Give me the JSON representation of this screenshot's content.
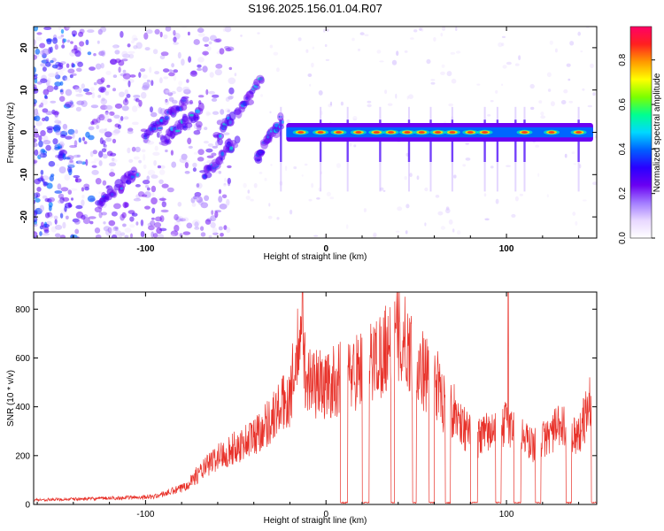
{
  "title": "S196.2025.156.01.04.R07",
  "colors": {
    "snr_line": "#e8322a",
    "colormap": [
      "#ffffff",
      "#e8d8ff",
      "#a27bff",
      "#6a00f2",
      "#2a00ff",
      "#0060ff",
      "#00d8ff",
      "#00ff90",
      "#7cff00",
      "#ffff00",
      "#ff9a00",
      "#ff2020",
      "#ff0066"
    ]
  },
  "chart_data": [
    {
      "type": "heatmap",
      "xlabel": "Height of straight line (km)",
      "ylabel": "Frequency (Hz)",
      "xlim": [
        -162,
        150
      ],
      "ylim": [
        -25,
        25
      ],
      "x_ticks": [
        -100,
        0,
        100
      ],
      "y_ticks": [
        -20,
        -10,
        0,
        10,
        20
      ],
      "colorbar": {
        "label": "Normalized spectral amplitude",
        "range": [
          0,
          0.95
        ],
        "ticks": [
          0,
          0.2,
          0.4,
          0.6,
          0.8
        ]
      },
      "ridges": [
        {
          "from": [
            -127,
            -18
          ],
          "to": [
            -105,
            -9
          ],
          "amp": 0.45
        },
        {
          "from": [
            -100,
            -1
          ],
          "to": [
            -78,
            7
          ],
          "amp": 0.45
        },
        {
          "from": [
            -90,
            -2
          ],
          "to": [
            -70,
            5
          ],
          "amp": 0.5
        },
        {
          "from": [
            -68,
            -10
          ],
          "to": [
            -50,
            -2
          ],
          "amp": 0.5
        },
        {
          "from": [
            -58,
            0
          ],
          "to": [
            -36,
            12
          ],
          "amp": 0.5
        },
        {
          "from": [
            -38,
            -6
          ],
          "to": [
            -25,
            3
          ],
          "amp": 0.5
        }
      ],
      "band": {
        "x_start": -22,
        "x_end": 148,
        "frequency": 0,
        "peaks_x": [
          -14,
          -3,
          7,
          18,
          28,
          36,
          45,
          53,
          62,
          70,
          80,
          88,
          110,
          125,
          140
        ],
        "spikes_x": [
          -25,
          -3,
          12,
          30,
          46,
          58,
          70,
          88,
          95,
          105,
          110,
          140
        ]
      }
    },
    {
      "type": "line",
      "xlabel": "Height of straight line (km)",
      "ylabel": "SNR (10 * v/v)",
      "xlim": [
        -162,
        150
      ],
      "ylim": [
        0,
        870
      ],
      "x_ticks": [
        -100,
        0,
        100
      ],
      "y_ticks": [
        0,
        200,
        400,
        600,
        800
      ],
      "envelope_x": [
        -162,
        -130,
        -110,
        -95,
        -80,
        -70,
        -60,
        -50,
        -40,
        -30,
        -20,
        -15,
        -10,
        0,
        10,
        20,
        30,
        35,
        40,
        45,
        50,
        55,
        60,
        65,
        70,
        75,
        80,
        85,
        90,
        95,
        100,
        105,
        110,
        115,
        120,
        125,
        130,
        135,
        140,
        145,
        150
      ],
      "envelope_y": [
        20,
        25,
        30,
        35,
        70,
        140,
        210,
        250,
        300,
        380,
        480,
        700,
        550,
        520,
        560,
        600,
        660,
        720,
        740,
        700,
        620,
        580,
        560,
        450,
        420,
        360,
        300,
        290,
        320,
        320,
        360,
        320,
        290,
        260,
        280,
        320,
        340,
        330,
        300,
        420,
        540
      ],
      "noise_amplitude": 0.35,
      "dropouts": [
        {
          "x": [
            8,
            12
          ]
        },
        {
          "x": [
            20,
            24
          ]
        },
        {
          "x": [
            36,
            38
          ]
        },
        {
          "x": [
            48,
            50
          ]
        },
        {
          "x": [
            57,
            60
          ]
        },
        {
          "x": [
            66,
            69
          ]
        },
        {
          "x": [
            80,
            84
          ]
        },
        {
          "x": [
            94,
            97
          ]
        },
        {
          "x": [
            104,
            108
          ]
        },
        {
          "x": [
            116,
            119
          ]
        },
        {
          "x": [
            133,
            136
          ]
        },
        {
          "x": [
            147,
            150
          ]
        }
      ],
      "spikes": [
        {
          "x": -13,
          "y": 870
        },
        {
          "x": 101,
          "y": 870
        }
      ]
    }
  ]
}
